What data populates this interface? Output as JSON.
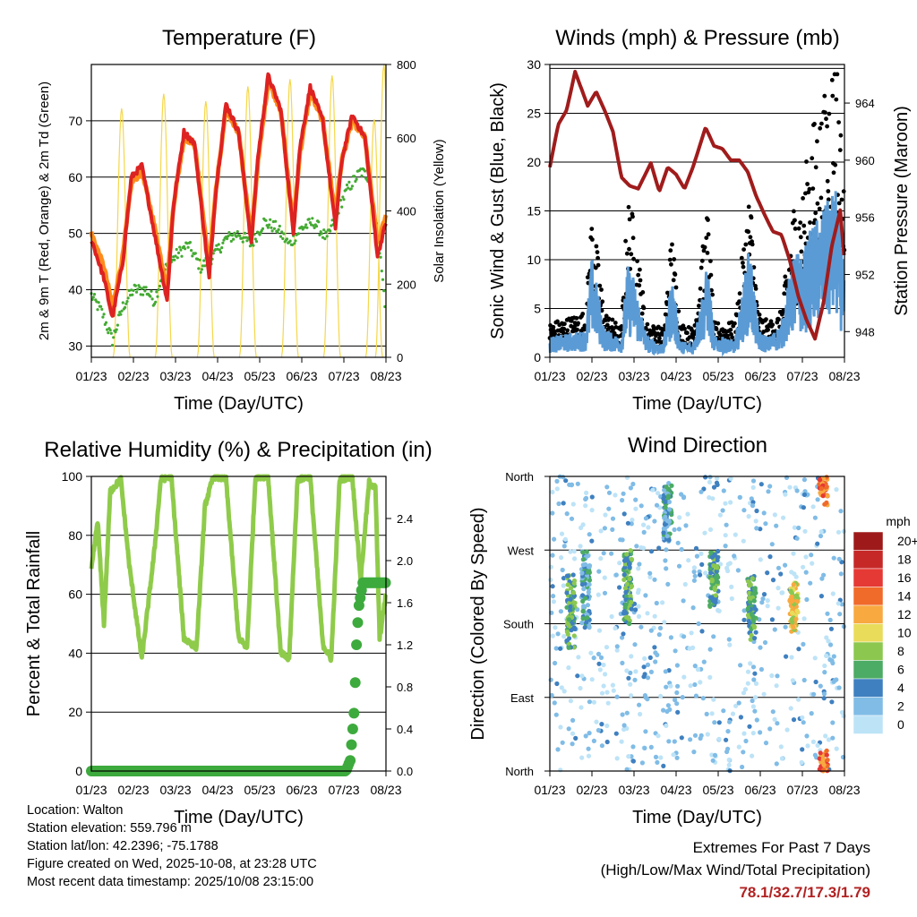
{
  "chart_data": [
    {
      "id": "temperature",
      "type": "line",
      "title": "Temperature (F)",
      "xlabel": "Time (Day/UTC)",
      "ylabel": "2m & 9m T (Red, Orange) & 2m Td (Green)",
      "ylabel_right": "Solar Insolation (Yellow)",
      "x_ticks": [
        "01/23",
        "02/23",
        "03/23",
        "04/23",
        "05/23",
        "06/23",
        "07/23",
        "08/23"
      ],
      "ylim": [
        28,
        80
      ],
      "y_ticks": [
        30,
        40,
        50,
        60,
        70
      ],
      "ylim_right": [
        0,
        800
      ],
      "y_ticks_right": [
        0,
        200,
        400,
        600,
        800
      ],
      "x_days": [
        0,
        7
      ],
      "series": [
        {
          "name": "2m T",
          "color": "#dd2222",
          "x": [
            0,
            0.3,
            0.5,
            0.75,
            0.95,
            1.2,
            1.45,
            1.8,
            1.95,
            2.2,
            2.45,
            2.8,
            2.95,
            3.2,
            3.5,
            3.8,
            3.95,
            4.2,
            4.5,
            4.8,
            4.95,
            5.2,
            5.5,
            5.8,
            5.95,
            6.2,
            6.5,
            6.8,
            7
          ],
          "values": [
            49,
            42,
            35,
            45,
            60,
            62,
            52,
            38,
            55,
            68,
            66,
            42,
            57,
            73,
            68,
            48,
            63,
            78,
            72,
            50,
            65,
            76,
            70,
            51,
            63,
            71,
            67,
            46,
            52
          ]
        },
        {
          "name": "9m T",
          "color": "#ff8c1a",
          "x": [
            0,
            0.3,
            0.5,
            0.75,
            0.95,
            1.2,
            1.45,
            1.8,
            1.95,
            2.2,
            2.45,
            2.8,
            2.95,
            3.2,
            3.5,
            3.8,
            3.95,
            4.2,
            4.5,
            4.8,
            4.95,
            5.2,
            5.5,
            5.8,
            5.95,
            6.2,
            6.5,
            6.8,
            7
          ],
          "values": [
            50,
            44,
            37,
            46,
            59,
            61,
            53,
            40,
            55,
            67,
            66,
            44,
            57,
            72,
            68,
            49,
            62,
            77,
            72,
            51,
            64,
            75,
            70,
            53,
            63,
            70,
            67,
            48,
            53
          ]
        },
        {
          "name": "2m Td",
          "color": "#44aa33",
          "x": [
            0,
            0.25,
            0.5,
            0.75,
            1.0,
            1.3,
            1.5,
            1.7,
            2.0,
            2.3,
            2.6,
            2.9,
            3.2,
            3.5,
            3.8,
            4.1,
            4.4,
            4.7,
            5.0,
            5.3,
            5.6,
            5.9,
            6.1,
            6.4,
            6.6,
            6.85,
            7
          ],
          "values": [
            39,
            36,
            31,
            37,
            40,
            40,
            38,
            43,
            46,
            48,
            44,
            46,
            49,
            50,
            48,
            52,
            51,
            48,
            51,
            52,
            49,
            55,
            58,
            61,
            60,
            47,
            36
          ]
        },
        {
          "name": "Solar Insolation",
          "color": "#f5d74a",
          "axis": "right",
          "peaks_x": [
            0.72,
            1.72,
            2.72,
            3.72,
            4.72,
            5.72,
            6.72,
            6.95
          ],
          "peaks_values": [
            680,
            720,
            700,
            740,
            760,
            770,
            650,
            800
          ]
        }
      ]
    },
    {
      "id": "winds",
      "type": "scatter",
      "title": "Winds (mph) & Pressure (mb)",
      "xlabel": "Time (Day/UTC)",
      "ylabel": "Sonic Wind & Gust (Blue, Black)",
      "ylabel_right": "Station Pressure (Maroon)",
      "x_ticks": [
        "01/23",
        "02/23",
        "03/23",
        "04/23",
        "05/23",
        "06/23",
        "07/23",
        "08/23"
      ],
      "ylim": [
        0,
        30
      ],
      "y_ticks": [
        0,
        5,
        10,
        15,
        20,
        25,
        30
      ],
      "ylim_right": [
        946.2,
        966.7
      ],
      "y_ticks_right": [
        948,
        952,
        956,
        960,
        964
      ],
      "x_days": [
        0,
        7
      ],
      "series": [
        {
          "name": "Station Pressure",
          "color": "#a01c1c",
          "axis": "right",
          "x": [
            0,
            0.2,
            0.4,
            0.6,
            0.9,
            1.1,
            1.3,
            1.5,
            1.7,
            1.9,
            2.1,
            2.4,
            2.6,
            2.8,
            3.0,
            3.2,
            3.4,
            3.7,
            3.9,
            4.1,
            4.3,
            4.5,
            4.7,
            4.9,
            5.1,
            5.3,
            5.5,
            5.7,
            5.9,
            6.1,
            6.3,
            6.5,
            6.7,
            6.9,
            7
          ],
          "values": [
            959.5,
            962.5,
            963.5,
            966.2,
            963.8,
            964.8,
            963.5,
            962.0,
            958.8,
            958.2,
            958.0,
            959.8,
            957.8,
            959.5,
            959.0,
            958.0,
            959.5,
            962.3,
            961.0,
            960.8,
            960.0,
            960.0,
            959.2,
            957.5,
            956.2,
            955.0,
            954.8,
            953.0,
            950.5,
            948.8,
            947.5,
            950.0,
            954.0,
            956.5,
            953.0
          ]
        },
        {
          "name": "Sonic Wind",
          "color": "#5b9bd5",
          "x": [
            0,
            0.5,
            0.85,
            1.0,
            1.3,
            1.7,
            1.85,
            2.0,
            2.3,
            2.7,
            2.9,
            3.1,
            3.4,
            3.75,
            3.9,
            4.1,
            4.4,
            4.75,
            4.95,
            5.2,
            5.5,
            5.8,
            6.0,
            6.2,
            6.5,
            6.8,
            7
          ],
          "values": [
            1.5,
            1.8,
            2.0,
            7.5,
            2.0,
            1.5,
            6.8,
            6.0,
            1.5,
            1.0,
            6.2,
            1.2,
            1.0,
            7.0,
            1.5,
            1.5,
            1.2,
            8.5,
            2.0,
            1.5,
            2.5,
            8.0,
            7.5,
            9.5,
            11.0,
            12.5,
            6.5
          ]
        },
        {
          "name": "Gust",
          "color": "#000000",
          "x": [
            0,
            0.5,
            0.85,
            1.0,
            1.3,
            1.7,
            1.85,
            2.0,
            2.3,
            2.7,
            2.9,
            3.1,
            3.4,
            3.75,
            3.9,
            4.1,
            4.4,
            4.75,
            4.95,
            5.2,
            5.5,
            5.8,
            6.0,
            6.2,
            6.5,
            6.8,
            7
          ],
          "values": [
            3,
            3.5,
            4,
            13.0,
            4.0,
            2.5,
            14.0,
            12.0,
            3.0,
            2.5,
            11.0,
            3.0,
            2.5,
            13.0,
            3.0,
            3.0,
            3.0,
            15.0,
            4.0,
            3.0,
            4.0,
            13.5,
            14.0,
            20.0,
            22.0,
            28.5,
            14.0
          ]
        }
      ]
    },
    {
      "id": "humidity",
      "type": "line",
      "title": "Relative Humidity (%) & Precipitation (in)",
      "xlabel": "Time (Day/UTC)",
      "ylabel": "Percent & Total Rainfall",
      "x_ticks": [
        "01/23",
        "02/23",
        "03/23",
        "04/23",
        "05/23",
        "06/23",
        "07/23",
        "08/23"
      ],
      "ylim": [
        0,
        100
      ],
      "y_ticks": [
        0,
        20,
        40,
        60,
        80,
        100
      ],
      "ylim_right": [
        0,
        2.8
      ],
      "y_ticks_right": [
        "0.0",
        "0.4",
        "0.8",
        "1.2",
        "1.6",
        "2.0",
        "2.4"
      ],
      "x_days": [
        0,
        7
      ],
      "series": [
        {
          "name": "Relative Humidity",
          "color": "#8fcb4a",
          "x": [
            0,
            0.15,
            0.3,
            0.45,
            0.7,
            0.9,
            1.2,
            1.5,
            1.65,
            1.9,
            2.2,
            2.5,
            2.7,
            2.9,
            3.2,
            3.5,
            3.7,
            3.9,
            4.2,
            4.5,
            4.7,
            4.9,
            5.2,
            5.5,
            5.7,
            5.9,
            6.2,
            6.4,
            6.6,
            6.75,
            6.85,
            7
          ],
          "values": [
            68,
            85,
            50,
            95,
            99,
            70,
            38,
            75,
            99,
            100,
            45,
            42,
            90,
            100,
            99,
            45,
            42,
            100,
            100,
            40,
            38,
            99,
            100,
            43,
            38,
            99,
            100,
            65,
            98,
            96,
            45,
            60
          ]
        },
        {
          "name": "Total Precipitation",
          "color": "#3daa3d",
          "axis": "right",
          "x": [
            0,
            6.05,
            6.15,
            6.25,
            6.3,
            6.35,
            6.45,
            7
          ],
          "values": [
            0.0,
            0.0,
            0.1,
            0.6,
            1.2,
            1.55,
            1.79,
            1.79
          ]
        }
      ]
    },
    {
      "id": "direction",
      "type": "scatter",
      "title": "Wind Direction",
      "xlabel": "Time (Day/UTC)",
      "ylabel": "Direction (Colored By Speed)",
      "x_ticks": [
        "01/23",
        "02/23",
        "03/23",
        "04/23",
        "05/23",
        "06/23",
        "07/23",
        "08/23"
      ],
      "y_ticks": [
        "North",
        "East",
        "South",
        "West",
        "North"
      ],
      "ylim": [
        0,
        360
      ],
      "x_days": [
        0,
        7
      ],
      "legend_title": "mph",
      "legend": [
        {
          "label": "20+",
          "color": "#9e1a1a"
        },
        {
          "label": "18",
          "color": "#c62828"
        },
        {
          "label": "16",
          "color": "#e53935"
        },
        {
          "label": "14",
          "color": "#f06a2a"
        },
        {
          "label": "12",
          "color": "#f8a940"
        },
        {
          "label": "10",
          "color": "#e9dc5a"
        },
        {
          "label": "8",
          "color": "#8cc850"
        },
        {
          "label": "6",
          "color": "#4cab64"
        },
        {
          "label": "4",
          "color": "#3f80c0"
        },
        {
          "label": "2",
          "color": "#80bce6"
        },
        {
          "label": "0",
          "color": "#bde3f7"
        }
      ],
      "clusters": [
        {
          "x": 0.5,
          "values": [
            190,
            220,
            170
          ],
          "speed": 6
        },
        {
          "x": 0.85,
          "values": [
            195,
            230,
            250
          ],
          "speed": 4
        },
        {
          "x": 1.85,
          "values": [
            230,
            250,
            200
          ],
          "speed": 6
        },
        {
          "x": 2.8,
          "values": [
            300,
            330,
            320
          ],
          "speed": 4
        },
        {
          "x": 3.9,
          "values": [
            220,
            240,
            250
          ],
          "speed": 6
        },
        {
          "x": 4.8,
          "values": [
            200,
            220,
            180
          ],
          "speed": 6
        },
        {
          "x": 5.8,
          "values": [
            190,
            210,
            195
          ],
          "speed": 10
        },
        {
          "x": 6.5,
          "values": [
            345,
            355,
            5
          ],
          "speed": 14
        }
      ]
    }
  ],
  "info": {
    "location": "Location: Walton",
    "elevation": "Station elevation: 559.796 m",
    "latlon": "Station lat/lon: 42.2396; -75.1788",
    "created": "Figure created on Wed, 2025-10-08, at 23:28 UTC",
    "recent": "Most recent data timestamp: 2025/10/08 23:15:00"
  },
  "extremes": {
    "line1": "Extremes For Past 7 Days",
    "line2": "(High/Low/Max Wind/Total Precipitation)",
    "values": "78.1/32.7/17.3/1.79"
  }
}
